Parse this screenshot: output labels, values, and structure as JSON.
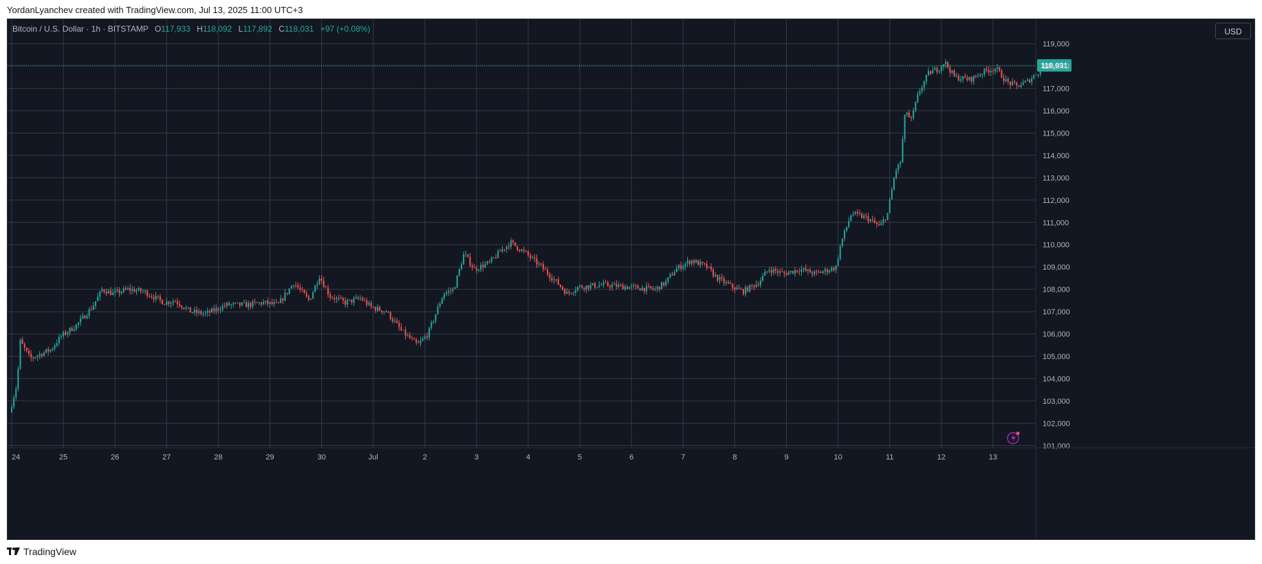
{
  "header": {
    "text": "YordanLyanchev created with TradingView.com, Jul 13, 2025 11:00 UTC+3"
  },
  "legend": {
    "symbol": "Bitcoin / U.S. Dollar · 1h · BITSTAMP",
    "o_label": "O",
    "o": "117,933",
    "h_label": "H",
    "h": "118,092",
    "l_label": "L",
    "l": "117,892",
    "c_label": "C",
    "c": "118,031",
    "change": "+97 (+0.08%)"
  },
  "currency": "USD",
  "last_price_label": "118,031",
  "footer": {
    "brand": "TradingView"
  },
  "colors": {
    "background": "#131722",
    "grid": "#363a45",
    "up": "#26a69a",
    "down": "#ef5350",
    "text": "#b2b5be",
    "last_price": "#26a69a"
  },
  "chart_data": {
    "type": "candlestick",
    "timeframe": "1h",
    "x_ticks": [
      "24",
      "25",
      "26",
      "27",
      "28",
      "29",
      "30",
      "Jul",
      "2",
      "3",
      "4",
      "5",
      "6",
      "7",
      "8",
      "9",
      "10",
      "11",
      "12",
      "13"
    ],
    "y_ticks": [
      "101,000",
      "102,000",
      "103,000",
      "104,000",
      "105,000",
      "106,000",
      "107,000",
      "108,000",
      "109,000",
      "110,000",
      "111,000",
      "112,000",
      "113,000",
      "114,000",
      "115,000",
      "116,000",
      "117,000",
      "118,000",
      "119,000"
    ],
    "ylim": [
      100900,
      120100
    ],
    "last_price": 118031,
    "grid": true,
    "anchors": [
      {
        "day": 0.0,
        "price": 102500
      },
      {
        "day": 0.15,
        "price": 103800
      },
      {
        "day": 0.2,
        "price": 105700
      },
      {
        "day": 0.4,
        "price": 104900
      },
      {
        "day": 0.8,
        "price": 105300
      },
      {
        "day": 1.0,
        "price": 105900
      },
      {
        "day": 1.3,
        "price": 106400
      },
      {
        "day": 1.6,
        "price": 107200
      },
      {
        "day": 1.8,
        "price": 108000
      },
      {
        "day": 2.0,
        "price": 107800
      },
      {
        "day": 2.3,
        "price": 108000
      },
      {
        "day": 2.6,
        "price": 107900
      },
      {
        "day": 3.0,
        "price": 107400
      },
      {
        "day": 3.2,
        "price": 107500
      },
      {
        "day": 3.5,
        "price": 107000
      },
      {
        "day": 3.8,
        "price": 106900
      },
      {
        "day": 4.2,
        "price": 107300
      },
      {
        "day": 4.6,
        "price": 107300
      },
      {
        "day": 4.9,
        "price": 107400
      },
      {
        "day": 5.2,
        "price": 107300
      },
      {
        "day": 5.5,
        "price": 108300
      },
      {
        "day": 5.8,
        "price": 107500
      },
      {
        "day": 6.0,
        "price": 108600
      },
      {
        "day": 6.2,
        "price": 107700
      },
      {
        "day": 6.5,
        "price": 107400
      },
      {
        "day": 6.8,
        "price": 107600
      },
      {
        "day": 7.0,
        "price": 107200
      },
      {
        "day": 7.3,
        "price": 107000
      },
      {
        "day": 7.6,
        "price": 106100
      },
      {
        "day": 7.9,
        "price": 105500
      },
      {
        "day": 8.1,
        "price": 106000
      },
      {
        "day": 8.4,
        "price": 107800
      },
      {
        "day": 8.6,
        "price": 108000
      },
      {
        "day": 8.8,
        "price": 109600
      },
      {
        "day": 9.0,
        "price": 108900
      },
      {
        "day": 9.3,
        "price": 109200
      },
      {
        "day": 9.5,
        "price": 109700
      },
      {
        "day": 9.7,
        "price": 110100
      },
      {
        "day": 10.0,
        "price": 109600
      },
      {
        "day": 10.3,
        "price": 109000
      },
      {
        "day": 10.6,
        "price": 108300
      },
      {
        "day": 10.8,
        "price": 107800
      },
      {
        "day": 11.0,
        "price": 108100
      },
      {
        "day": 11.5,
        "price": 108200
      },
      {
        "day": 12.0,
        "price": 108100
      },
      {
        "day": 12.5,
        "price": 108000
      },
      {
        "day": 12.7,
        "price": 108300
      },
      {
        "day": 12.9,
        "price": 108900
      },
      {
        "day": 13.2,
        "price": 109300
      },
      {
        "day": 13.5,
        "price": 109000
      },
      {
        "day": 13.7,
        "price": 108500
      },
      {
        "day": 14.0,
        "price": 108100
      },
      {
        "day": 14.2,
        "price": 107900
      },
      {
        "day": 14.5,
        "price": 108300
      },
      {
        "day": 14.7,
        "price": 108900
      },
      {
        "day": 15.0,
        "price": 108700
      },
      {
        "day": 15.3,
        "price": 108900
      },
      {
        "day": 15.6,
        "price": 108700
      },
      {
        "day": 15.9,
        "price": 108900
      },
      {
        "day": 16.0,
        "price": 109000
      },
      {
        "day": 16.1,
        "price": 110100
      },
      {
        "day": 16.3,
        "price": 111400
      },
      {
        "day": 16.6,
        "price": 111200
      },
      {
        "day": 16.85,
        "price": 110800
      },
      {
        "day": 17.0,
        "price": 111400
      },
      {
        "day": 17.15,
        "price": 113300
      },
      {
        "day": 17.25,
        "price": 113700
      },
      {
        "day": 17.35,
        "price": 116100
      },
      {
        "day": 17.45,
        "price": 115500
      },
      {
        "day": 17.6,
        "price": 116800
      },
      {
        "day": 17.8,
        "price": 117700
      },
      {
        "day": 18.0,
        "price": 117900
      },
      {
        "day": 18.1,
        "price": 118200
      },
      {
        "day": 18.3,
        "price": 117500
      },
      {
        "day": 18.6,
        "price": 117400
      },
      {
        "day": 18.9,
        "price": 117800
      },
      {
        "day": 19.1,
        "price": 117900
      },
      {
        "day": 19.3,
        "price": 117300
      },
      {
        "day": 19.5,
        "price": 117100
      },
      {
        "day": 19.7,
        "price": 117300
      },
      {
        "day": 19.8,
        "price": 117500
      },
      {
        "day": 19.95,
        "price": 117800
      },
      {
        "day": 20.05,
        "price": 118031
      }
    ]
  }
}
